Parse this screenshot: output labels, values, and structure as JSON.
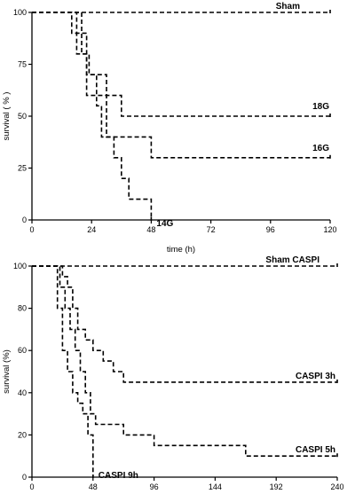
{
  "chart_data": [
    {
      "type": "line",
      "step": true,
      "title": "",
      "xlabel": "time (h)",
      "ylabel": "survival ( % )",
      "xlim": [
        0,
        120
      ],
      "ylim": [
        0,
        100
      ],
      "xticks": [
        0,
        24,
        48,
        72,
        96,
        120
      ],
      "yticks": [
        0,
        25,
        50,
        75,
        100
      ],
      "line_style": "dashed",
      "color": "#000000",
      "series": [
        {
          "name": "Sham",
          "x": [
            0,
            120
          ],
          "y": [
            100,
            100
          ]
        },
        {
          "name": "18G",
          "x": [
            0,
            20,
            20,
            23,
            23,
            30,
            30,
            36,
            36,
            120
          ],
          "y": [
            100,
            100,
            80,
            80,
            70,
            70,
            60,
            60,
            50,
            50
          ]
        },
        {
          "name": "16G",
          "x": [
            0,
            18,
            18,
            22,
            22,
            26,
            26,
            30,
            30,
            48,
            48,
            120
          ],
          "y": [
            100,
            100,
            90,
            90,
            70,
            70,
            60,
            60,
            40,
            40,
            30,
            30
          ]
        },
        {
          "name": "14G",
          "x": [
            0,
            16,
            16,
            18,
            18,
            22,
            22,
            26,
            26,
            28,
            28,
            33,
            33,
            36,
            36,
            39,
            39,
            48,
            48
          ],
          "y": [
            100,
            100,
            90,
            90,
            80,
            80,
            60,
            60,
            55,
            55,
            40,
            40,
            30,
            30,
            20,
            20,
            10,
            10,
            0
          ]
        }
      ]
    },
    {
      "type": "line",
      "step": true,
      "title": "",
      "xlabel": "",
      "ylabel": "survival (%)",
      "xlim": [
        0,
        240
      ],
      "ylim": [
        0,
        100
      ],
      "xticks": [
        0,
        48,
        96,
        144,
        192,
        240
      ],
      "yticks": [
        0,
        20,
        40,
        60,
        80,
        100
      ],
      "line_style": "dashed",
      "color": "#000000",
      "series": [
        {
          "name": "Sham CASPI",
          "x": [
            0,
            240
          ],
          "y": [
            100,
            100
          ]
        },
        {
          "name": "CASPI 3h",
          "x": [
            0,
            24,
            24,
            28,
            28,
            32,
            32,
            36,
            36,
            42,
            42,
            48,
            48,
            56,
            56,
            64,
            64,
            72,
            72,
            240
          ],
          "y": [
            100,
            100,
            95,
            95,
            90,
            90,
            80,
            80,
            70,
            70,
            65,
            65,
            60,
            60,
            55,
            55,
            50,
            50,
            45,
            45
          ]
        },
        {
          "name": "CASPI 5h",
          "x": [
            0,
            22,
            22,
            26,
            26,
            30,
            30,
            34,
            34,
            38,
            38,
            42,
            42,
            46,
            46,
            50,
            50,
            72,
            72,
            96,
            96,
            168,
            168,
            240
          ],
          "y": [
            100,
            100,
            90,
            90,
            80,
            80,
            70,
            70,
            60,
            60,
            50,
            50,
            40,
            40,
            30,
            30,
            25,
            25,
            20,
            20,
            15,
            15,
            10,
            10
          ]
        },
        {
          "name": "CASPI 9h",
          "x": [
            0,
            20,
            20,
            24,
            24,
            28,
            28,
            32,
            32,
            36,
            36,
            40,
            40,
            44,
            44,
            48,
            48
          ],
          "y": [
            100,
            100,
            80,
            80,
            60,
            60,
            50,
            50,
            40,
            40,
            35,
            35,
            30,
            30,
            20,
            20,
            0
          ]
        }
      ]
    }
  ]
}
